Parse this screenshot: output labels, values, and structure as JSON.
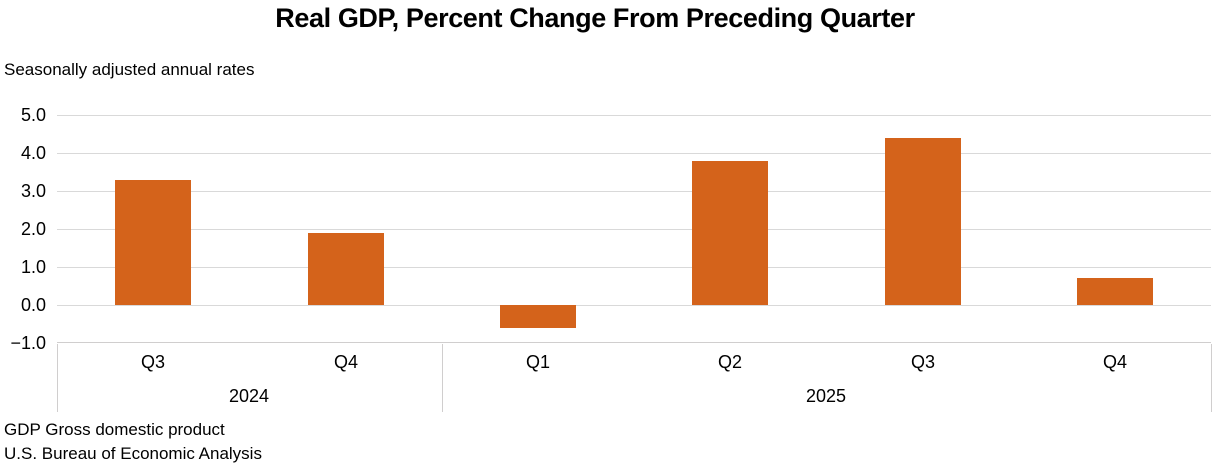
{
  "header": {
    "title": "Real GDP, Percent Change From Preceding Quarter",
    "subtitle": "Seasonally adjusted annual rates"
  },
  "footer": {
    "line1": "GDP Gross domestic product",
    "line2": "U.S. Bureau of Economic Analysis"
  },
  "colors": {
    "bar": "#D4631B",
    "gridline": "#D9D9D9",
    "axis_line": "#D0CECE",
    "text": "#000000"
  },
  "chart_data": {
    "type": "bar",
    "categories": [
      "Q3",
      "Q4",
      "Q1",
      "Q2",
      "Q3",
      "Q4"
    ],
    "values": [
      3.3,
      1.9,
      -0.6,
      3.8,
      4.4,
      0.7
    ],
    "groups": [
      {
        "label": "2024",
        "span": 2
      },
      {
        "label": "2025",
        "span": 4
      }
    ],
    "title": "Real GDP, Percent Change From Preceding Quarter",
    "subtitle": "Seasonally adjusted annual rates",
    "xlabel": "",
    "ylabel": "",
    "ylim": [
      -1.0,
      5.0
    ],
    "yticks": [
      5.0,
      4.0,
      3.0,
      2.0,
      1.0,
      0.0,
      -1.0
    ],
    "ytick_labels": [
      "5.0",
      "4.0",
      "3.0",
      "2.0",
      "1.0",
      "0.0",
      "−1.0"
    ],
    "grid": true,
    "legend": "none",
    "bar_color": "#D4631B"
  }
}
